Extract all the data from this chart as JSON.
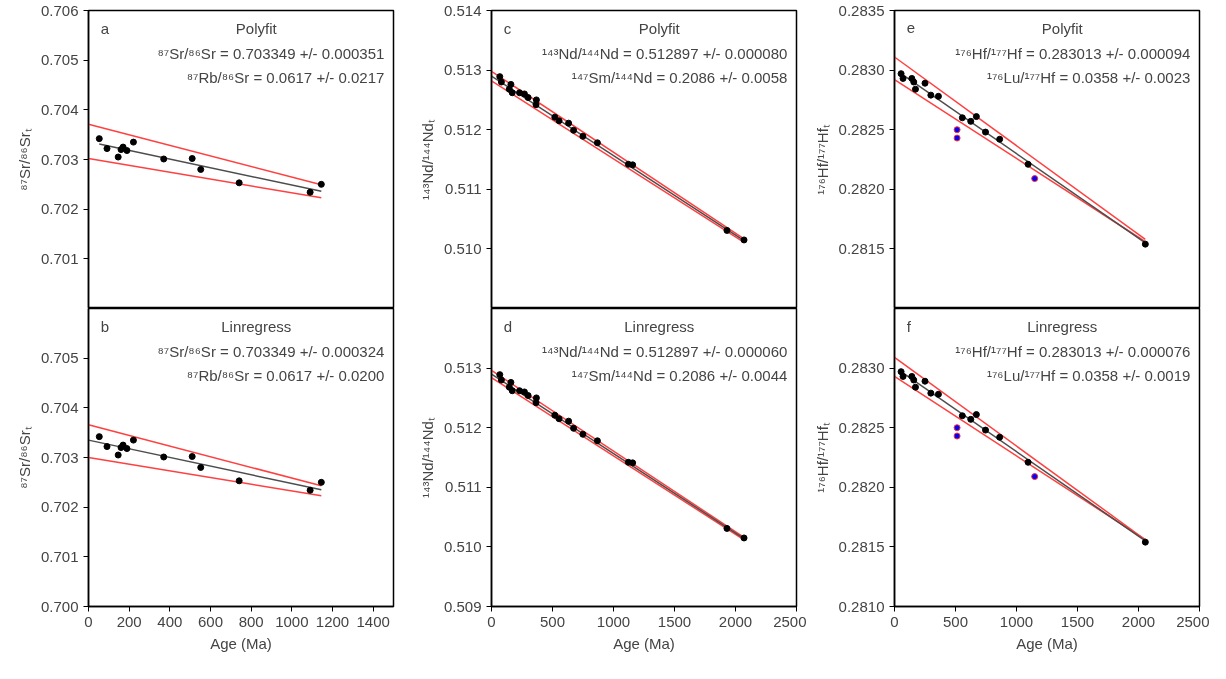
{
  "chart_data": [
    {
      "type": "scatter",
      "tick_labels": "y",
      "ylabel": "⁸⁷Sr/⁸⁶Srₜ",
      "xlim": [
        0,
        1500
      ],
      "ylim": [
        0.7,
        0.706
      ],
      "yticks": [
        0.701,
        0.702,
        0.703,
        0.704,
        0.705,
        0.706
      ],
      "annotations": [
        "a",
        "Polyfit",
        "⁸⁷Sr/⁸⁶Sr = 0.703349 +/- 0.000351",
        "⁸⁷Rb/⁸⁶Sr = 0.0617 +/- 0.0217"
      ],
      "series": [
        {
          "type": "line",
          "color": "#ff4040",
          "x": [
            0,
            1145
          ],
          "values": [
            0.70371,
            0.70249
          ]
        },
        {
          "type": "line",
          "color": "#ff4040",
          "x": [
            0,
            1145
          ],
          "values": [
            0.70302,
            0.70223
          ]
        },
        {
          "type": "line",
          "color": "#4d4d4d",
          "x": [
            53,
            1145
          ],
          "values": [
            0.70331,
            0.70236
          ]
        },
        {
          "marker": "circle",
          "color": "#000000",
          "x": [
            53,
            91,
            146,
            160,
            170,
            189,
            221,
            370,
            510,
            552,
            741,
            1090,
            1145
          ],
          "values": [
            0.70342,
            0.70322,
            0.70305,
            0.7032,
            0.70325,
            0.70318,
            0.70335,
            0.70301,
            0.70302,
            0.7028,
            0.70253,
            0.70234,
            0.7025
          ]
        }
      ]
    },
    {
      "type": "scatter",
      "tick_labels": "y",
      "ylabel": "¹⁴³Nd/¹⁴⁴Ndₜ",
      "xlim": [
        0,
        2500
      ],
      "ylim": [
        0.509,
        0.514
      ],
      "yticks": [
        {
          "value": 0.51,
          "label": "0.510"
        },
        0.511,
        0.512,
        0.513,
        0.514
      ],
      "annotations": [
        "c",
        "Polyfit",
        "¹⁴³Nd/¹⁴⁴Nd = 0.512897 +/- 0.000080",
        "¹⁴⁷Sm/¹⁴⁴Nd = 0.2086 +/- 0.0058"
      ],
      "series": [
        {
          "type": "line",
          "color": "#ff4040",
          "x": [
            0,
            2070
          ],
          "values": [
            0.51298,
            0.51017
          ]
        },
        {
          "type": "line",
          "color": "#ff4040",
          "x": [
            0,
            2070
          ],
          "values": [
            0.51282,
            0.51011
          ]
        },
        {
          "type": "line",
          "color": "#4d4d4d",
          "x": [
            0,
            2070
          ],
          "values": [
            0.5129,
            0.51014
          ]
        },
        {
          "marker": "circle",
          "color": "#000000",
          "x": [
            68,
            81,
            159,
            146,
            170,
            230,
            270,
            300,
            368,
            365,
            519,
            554,
            632,
            673,
            749,
            868,
            1122,
            1157,
            1930,
            2070
          ],
          "values": [
            0.51289,
            0.5128,
            0.51276,
            0.51268,
            0.51262,
            0.51262,
            0.5126,
            0.51254,
            0.5125,
            0.51242,
            0.51221,
            0.51215,
            0.51211,
            0.51199,
            0.51189,
            0.51178,
            0.51142,
            0.51141,
            0.51031,
            0.51015
          ]
        }
      ]
    },
    {
      "type": "scatter",
      "tick_labels": "y",
      "ylabel": "¹⁷⁶Hf/¹⁷⁷Hfₜ",
      "xlim": [
        0,
        2500
      ],
      "ylim": [
        0.281,
        0.2835
      ],
      "yticks": [
        0.2815,
        {
          "value": 0.282,
          "label": "0.2820"
        },
        0.2825,
        {
          "value": 0.283,
          "label": "0.2830"
        },
        0.2835
      ],
      "annotations": [
        "e",
        "Polyfit",
        "¹⁷⁶Hf/¹⁷⁷Hf = 0.283013 +/- 0.000094",
        "¹⁷⁶Lu/¹⁷⁷Hf = 0.0358 +/- 0.0023"
      ],
      "series": [
        {
          "type": "line",
          "color": "#ff4040",
          "x": [
            0,
            2056
          ],
          "values": [
            0.28311,
            0.28158
          ]
        },
        {
          "type": "line",
          "color": "#ff4040",
          "x": [
            0,
            2056
          ],
          "values": [
            0.28292,
            0.28156
          ]
        },
        {
          "type": "line",
          "color": "#4d4d4d",
          "x": [
            54,
            2056
          ],
          "values": [
            0.28297,
            0.28155
          ]
        },
        {
          "marker": "circle",
          "color": "#000000",
          "x": [
            54,
            70,
            142,
            158,
            172,
            250,
            298,
            360,
            556,
            625,
            671,
            746,
            862,
            1095,
            2056
          ],
          "values": [
            0.28297,
            0.28293,
            0.28293,
            0.2829,
            0.28284,
            0.28289,
            0.28279,
            0.28278,
            0.2826,
            0.28257,
            0.28261,
            0.28248,
            0.28242,
            0.28221,
            0.28154
          ]
        },
        {
          "marker": "circle",
          "color": "#0000ff",
          "x": [
            513,
            513,
            1149
          ],
          "values": [
            0.2825,
            0.28243,
            0.28209
          ]
        }
      ]
    },
    {
      "type": "scatter",
      "xlabel": "Age (Ma)",
      "ylabel": "⁸⁷Sr/⁸⁶Srₜ",
      "xlim": [
        0,
        1500
      ],
      "ylim": [
        0.7,
        0.706
      ],
      "xticks": [
        0,
        200,
        400,
        600,
        800,
        1000,
        1200,
        1400
      ],
      "yticks": [
        {
          "value": 0.7,
          "label": "0.700"
        },
        0.701,
        0.702,
        0.703,
        0.704,
        0.705
      ],
      "annotations": [
        "b",
        "Linregress",
        "⁸⁷Sr/⁸⁶Sr = 0.703349 +/- 0.000324",
        "⁸⁷Rb/⁸⁶Sr = 0.0617 +/- 0.0200"
      ],
      "series": [
        {
          "type": "line",
          "color": "#ff4040",
          "x": [
            0,
            1145
          ],
          "values": [
            0.70366,
            0.70243
          ]
        },
        {
          "type": "line",
          "color": "#ff4040",
          "x": [
            0,
            1145
          ],
          "values": [
            0.703,
            0.70223
          ]
        },
        {
          "type": "line",
          "color": "#4d4d4d",
          "x": [
            0,
            1145
          ],
          "values": [
            0.70335,
            0.70235
          ]
        },
        {
          "marker": "circle",
          "color": "#000000",
          "x": [
            53,
            91,
            146,
            160,
            170,
            189,
            221,
            370,
            510,
            552,
            741,
            1090,
            1145
          ],
          "values": [
            0.70342,
            0.70322,
            0.70305,
            0.7032,
            0.70325,
            0.70318,
            0.70335,
            0.70301,
            0.70302,
            0.7028,
            0.70253,
            0.70234,
            0.7025
          ]
        }
      ]
    },
    {
      "type": "scatter",
      "xlabel": "Age (Ma)",
      "ylabel": "¹⁴³Nd/¹⁴⁴Ndₜ",
      "xlim": [
        0,
        2500
      ],
      "ylim": [
        0.509,
        0.514
      ],
      "xticks": [
        0,
        500,
        1000,
        1500,
        2000,
        2500
      ],
      "yticks": [
        0.509,
        {
          "value": 0.51,
          "label": "0.510"
        },
        0.511,
        0.512,
        0.513
      ],
      "annotations": [
        "d",
        "Linregress",
        "¹⁴³Nd/¹⁴⁴Nd = 0.512897 +/- 0.000060",
        "¹⁴⁷Sm/¹⁴⁴Nd = 0.2086 +/- 0.0044"
      ],
      "series": [
        {
          "type": "line",
          "color": "#ff4040",
          "x": [
            0,
            2070
          ],
          "values": [
            0.51296,
            0.51016
          ]
        },
        {
          "type": "line",
          "color": "#ff4040",
          "x": [
            0,
            2070
          ],
          "values": [
            0.51284,
            0.51012
          ]
        },
        {
          "type": "line",
          "color": "#4d4d4d",
          "x": [
            0,
            2070
          ],
          "values": [
            0.5129,
            0.51014
          ]
        },
        {
          "marker": "circle",
          "color": "#000000",
          "x": [
            68,
            81,
            159,
            146,
            170,
            230,
            270,
            300,
            368,
            365,
            519,
            554,
            632,
            673,
            749,
            868,
            1122,
            1157,
            1930,
            2070
          ],
          "values": [
            0.51289,
            0.5128,
            0.51276,
            0.51268,
            0.51262,
            0.51262,
            0.5126,
            0.51254,
            0.5125,
            0.51242,
            0.51221,
            0.51215,
            0.51211,
            0.51199,
            0.51189,
            0.51178,
            0.51142,
            0.51141,
            0.51031,
            0.51015
          ]
        }
      ]
    },
    {
      "type": "scatter",
      "xlabel": "Age (Ma)",
      "ylabel": "¹⁷⁶Hf/¹⁷⁷Hfₜ",
      "xlim": [
        0,
        2500
      ],
      "ylim": [
        0.281,
        0.2835
      ],
      "xticks": [
        0,
        500,
        1000,
        1500,
        2000,
        2500
      ],
      "yticks": [
        {
          "value": 0.281,
          "label": "0.2810"
        },
        0.2815,
        {
          "value": 0.282,
          "label": "0.2820"
        },
        0.2825,
        {
          "value": 0.283,
          "label": "0.2830"
        }
      ],
      "annotations": [
        "f",
        "Linregress",
        "¹⁷⁶Hf/¹⁷⁷Hf = 0.283013 +/- 0.000076",
        "¹⁷⁶Lu/¹⁷⁷Hf = 0.0358 +/- 0.0019"
      ],
      "series": [
        {
          "type": "line",
          "color": "#ff4040",
          "x": [
            0,
            2056
          ],
          "values": [
            0.28309,
            0.28156
          ]
        },
        {
          "type": "line",
          "color": "#ff4040",
          "x": [
            0,
            2056
          ],
          "values": [
            0.28293,
            0.28156
          ]
        },
        {
          "type": "line",
          "color": "#4d4d4d",
          "x": [
            54,
            2056
          ],
          "values": [
            0.28297,
            0.28155
          ]
        },
        {
          "marker": "circle",
          "color": "#000000",
          "x": [
            54,
            70,
            142,
            158,
            172,
            250,
            298,
            360,
            556,
            625,
            671,
            746,
            862,
            1095,
            2056
          ],
          "values": [
            0.28297,
            0.28293,
            0.28293,
            0.2829,
            0.28284,
            0.28289,
            0.28279,
            0.28278,
            0.2826,
            0.28257,
            0.28261,
            0.28248,
            0.28242,
            0.28221,
            0.28154
          ]
        },
        {
          "marker": "circle",
          "color": "#0000ff",
          "x": [
            513,
            513,
            1149
          ],
          "values": [
            0.2825,
            0.28243,
            0.28209
          ]
        }
      ]
    }
  ]
}
